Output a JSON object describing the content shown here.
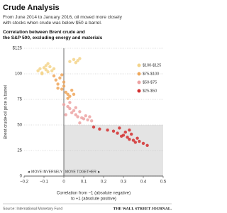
{
  "chart_data": {
    "type": "scatter",
    "title": "Crude Analysis",
    "subtitle": [
      "From June 2014 to January 2016, oil moved more closely",
      "with stocks when crude was below $50 a barrel."
    ],
    "chart_heading": [
      "Correlation between Brent crude and",
      "the S&P 500, excluding energy and materials"
    ],
    "y_label": "Brent crude-oil price a barrel",
    "x_label": [
      "Correlation from −1 (absolute negative)",
      "to +1 (absolute positive)"
    ],
    "annotations": [
      "◄ MOVE INVERSELY",
      "MOVE TOGETHER ►"
    ],
    "source": "Source: International Monetary Fund",
    "credit": "THE WALL STREET JOURNAL.",
    "xlim": [
      -0.2,
      0.5
    ],
    "ylim": [
      0,
      125
    ],
    "xticks": [
      {
        "value": -0.2,
        "label": "−0.2"
      },
      {
        "value": -0.1,
        "label": "−0.1"
      },
      0,
      0.1,
      0.2,
      0.3,
      0.4,
      0.5
    ],
    "yticks": [
      0,
      25,
      50,
      75,
      100,
      {
        "value": 125,
        "label": "$125"
      }
    ],
    "grid": true,
    "legend": "right",
    "shaded_region": {
      "xlim": [
        0,
        0.5
      ],
      "ylim": [
        0,
        50
      ]
    },
    "series": [
      {
        "name": "$100-$125",
        "color": "#f3d48a",
        "x": [
          -0.13,
          -0.12,
          -0.11,
          -0.1,
          -0.09,
          -0.09,
          -0.08,
          -0.07,
          -0.06,
          -0.05,
          -0.11,
          -0.08,
          0.03,
          0.05,
          0.06,
          0.08,
          0.07
        ],
        "values": [
          103,
          105,
          101,
          106,
          104,
          108,
          102,
          107,
          103,
          105,
          100,
          110,
          112,
          114,
          111,
          115,
          113
        ]
      },
      {
        "name": "$75-$100",
        "color": "#eea65a",
        "x": [
          -0.05,
          -0.04,
          -0.03,
          -0.02,
          -0.01,
          0.0,
          0.01,
          0.02,
          0.03,
          -0.03,
          0.0,
          0.02,
          0.04,
          -0.01,
          0.05
        ],
        "values": [
          98,
          94,
          90,
          96,
          85,
          88,
          82,
          80,
          78,
          86,
          92,
          76,
          84,
          99,
          80
        ]
      },
      {
        "name": "$50-$75",
        "color": "#eca3a3",
        "x": [
          0.0,
          0.02,
          0.03,
          0.04,
          0.05,
          0.06,
          0.07,
          0.08,
          0.09,
          0.1,
          0.11,
          0.12,
          0.13,
          0.14,
          0.06,
          0.08,
          0.03,
          0.01
        ],
        "values": [
          70,
          68,
          66,
          62,
          64,
          60,
          58,
          63,
          57,
          56,
          59,
          55,
          58,
          54,
          67,
          52,
          72,
          60
        ]
      },
      {
        "name": "$25-$50",
        "color": "#d32f2f",
        "x": [
          0.15,
          0.18,
          0.22,
          0.25,
          0.27,
          0.28,
          0.3,
          0.31,
          0.32,
          0.33,
          0.34,
          0.35,
          0.36,
          0.37,
          0.38,
          0.4,
          0.42,
          0.29,
          0.33
        ],
        "values": [
          48,
          46,
          45,
          44,
          42,
          47,
          40,
          43,
          38,
          36,
          41,
          35,
          33,
          37,
          34,
          32,
          30,
          39,
          45
        ]
      }
    ]
  }
}
